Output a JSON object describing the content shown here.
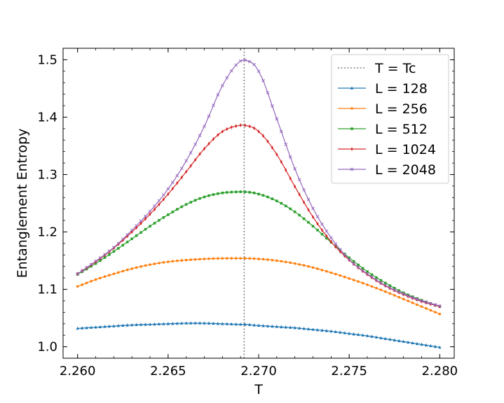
{
  "chart_data": {
    "type": "line",
    "title": "",
    "xlabel": "T",
    "ylabel": "Entanglement Entropy",
    "xlim": [
      2.2592,
      2.2808
    ],
    "ylim": [
      0.98,
      1.52
    ],
    "x_ticks": [
      2.26,
      2.265,
      2.27,
      2.275,
      2.28
    ],
    "x_tick_labels": [
      "2.260",
      "2.265",
      "2.270",
      "2.275",
      "2.280"
    ],
    "y_ticks": [
      1.0,
      1.1,
      1.2,
      1.3,
      1.4,
      1.5
    ],
    "y_tick_labels": [
      "1.0",
      "1.1",
      "1.2",
      "1.3",
      "1.4",
      "1.5"
    ],
    "grid": false,
    "legend_position": "top-right",
    "vline": {
      "x": 2.2692,
      "label": "T = Tc",
      "color": "#808080",
      "style": "dotted"
    },
    "x": [
      2.26,
      2.261,
      2.262,
      2.263,
      2.264,
      2.265,
      2.266,
      2.267,
      2.268,
      2.269,
      2.2692,
      2.27,
      2.271,
      2.272,
      2.273,
      2.274,
      2.275,
      2.276,
      2.277,
      2.278,
      2.279,
      2.28
    ],
    "series": [
      {
        "name": "L = 128",
        "color": "#1f77b4",
        "marker": "triangle",
        "values": [
          1.032,
          1.034,
          1.036,
          1.038,
          1.039,
          1.04,
          1.041,
          1.041,
          1.04,
          1.039,
          1.039,
          1.037,
          1.035,
          1.033,
          1.03,
          1.027,
          1.023,
          1.019,
          1.014,
          1.009,
          1.004,
          0.999
        ]
      },
      {
        "name": "L = 256",
        "color": "#ff7f0e",
        "marker": "circle",
        "values": [
          1.105,
          1.117,
          1.127,
          1.136,
          1.143,
          1.148,
          1.151,
          1.153,
          1.154,
          1.154,
          1.154,
          1.153,
          1.15,
          1.145,
          1.138,
          1.129,
          1.119,
          1.108,
          1.096,
          1.083,
          1.07,
          1.057
        ]
      },
      {
        "name": "L = 512",
        "color": "#2ca02c",
        "marker": "square",
        "values": [
          1.126,
          1.145,
          1.166,
          1.188,
          1.21,
          1.23,
          1.248,
          1.261,
          1.268,
          1.27,
          1.27,
          1.266,
          1.254,
          1.235,
          1.21,
          1.182,
          1.155,
          1.131,
          1.111,
          1.094,
          1.081,
          1.07
        ]
      },
      {
        "name": "L = 1024",
        "color": "#d62728",
        "marker": "diamond",
        "values": [
          1.127,
          1.148,
          1.172,
          1.2,
          1.231,
          1.266,
          1.305,
          1.345,
          1.375,
          1.386,
          1.386,
          1.375,
          1.335,
          1.279,
          1.226,
          1.183,
          1.151,
          1.126,
          1.106,
          1.091,
          1.079,
          1.07
        ]
      },
      {
        "name": "L = 2048",
        "color": "#9467bd",
        "marker": "cross",
        "values": [
          1.127,
          1.149,
          1.173,
          1.203,
          1.236,
          1.275,
          1.324,
          1.384,
          1.455,
          1.498,
          1.5,
          1.48,
          1.397,
          1.31,
          1.241,
          1.19,
          1.152,
          1.127,
          1.107,
          1.092,
          1.08,
          1.071
        ]
      }
    ]
  }
}
